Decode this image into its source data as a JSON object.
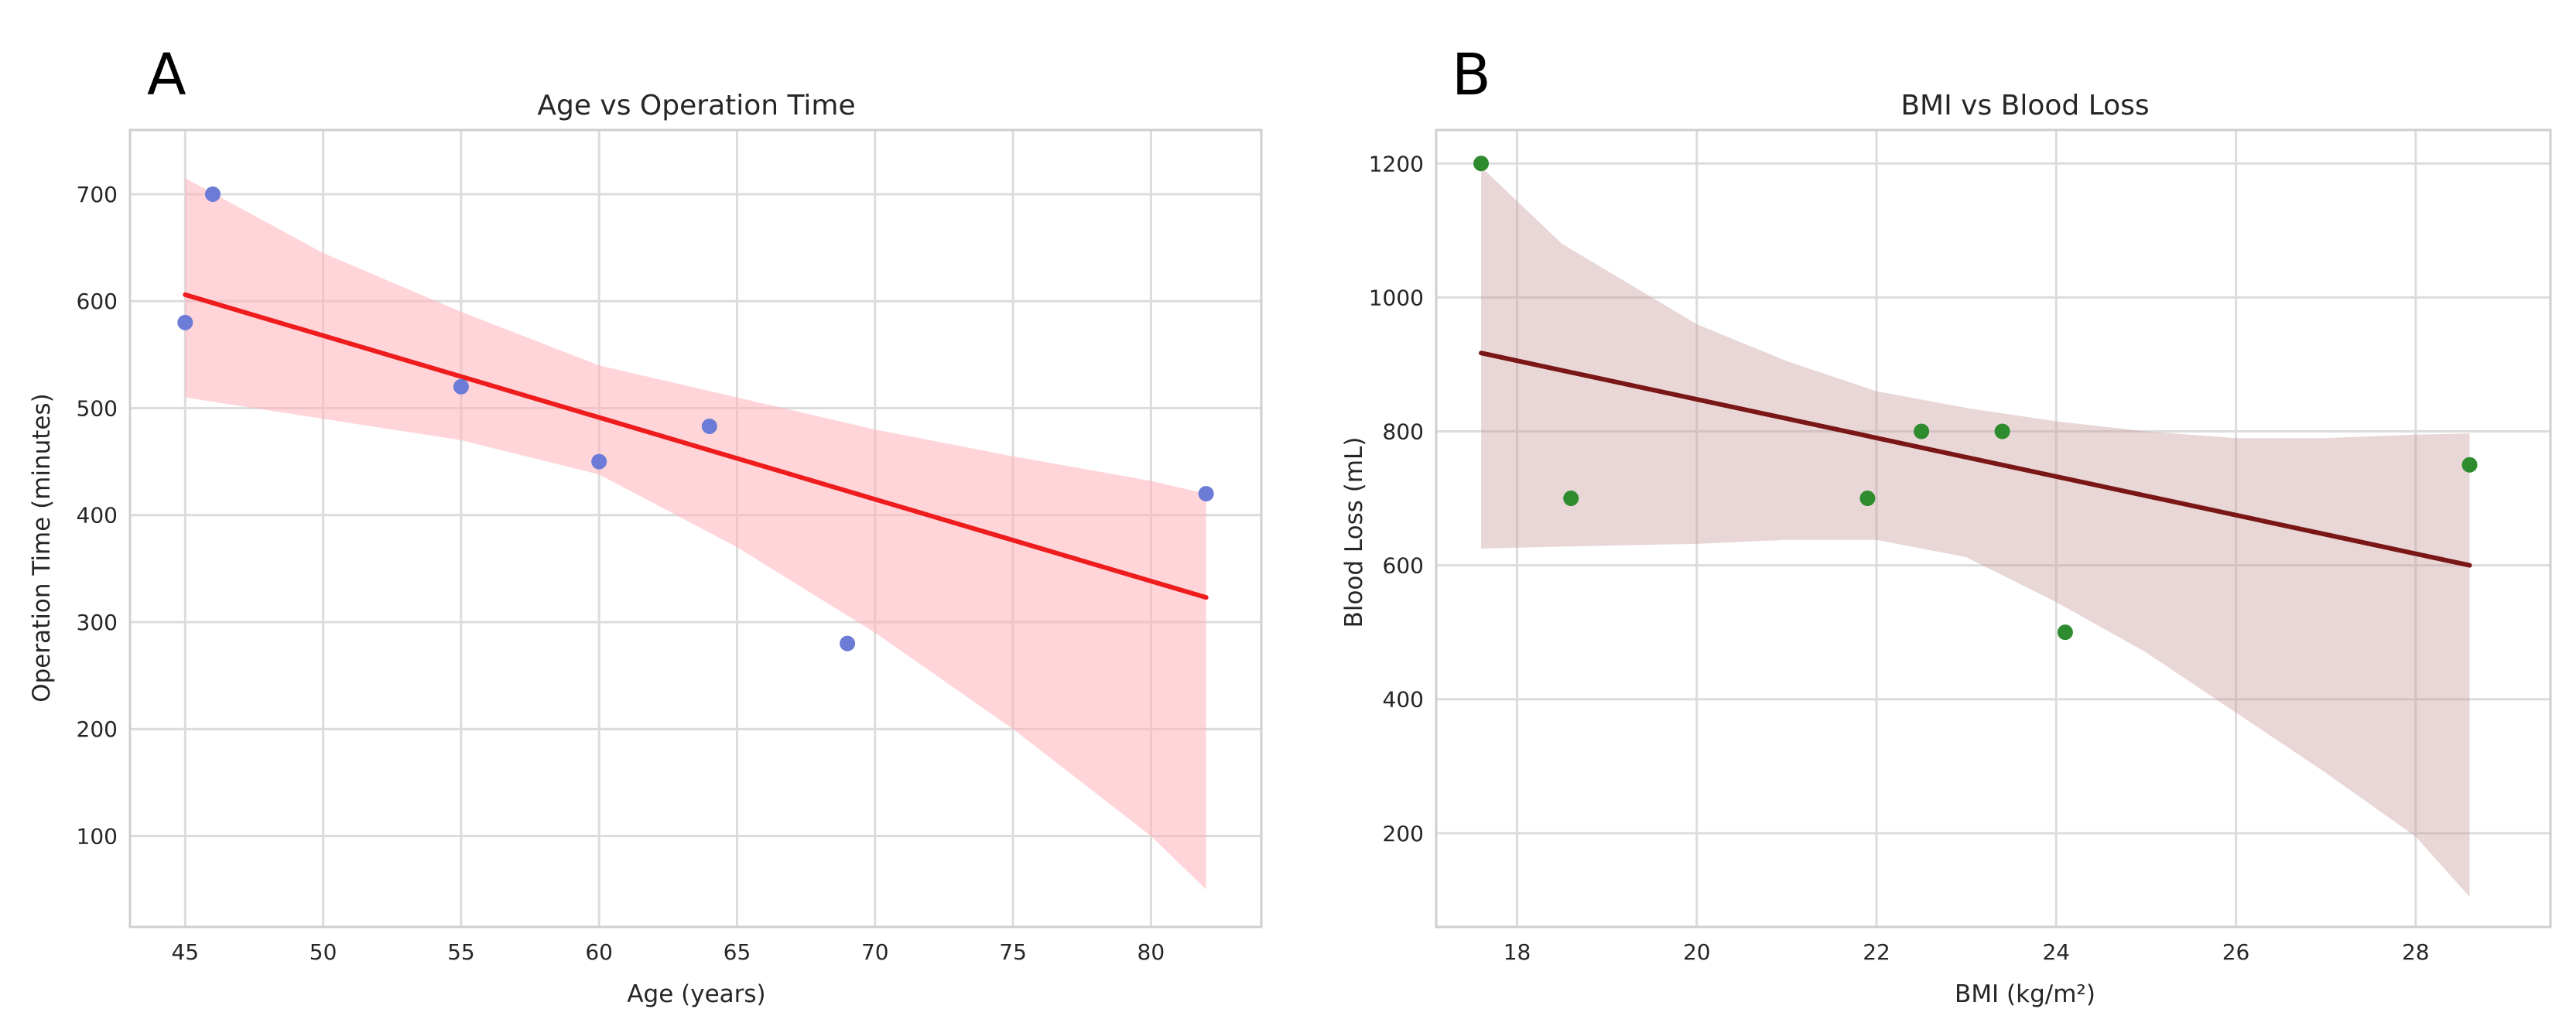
{
  "chart_data": [
    {
      "panel_label": "A",
      "type": "scatter",
      "title": "Age vs Operation Time",
      "xlabel": "Age (years)",
      "ylabel": "Operation Time (minutes)",
      "xlim": [
        43,
        84
      ],
      "ylim": [
        15,
        760
      ],
      "xticks": [
        45,
        50,
        55,
        60,
        65,
        70,
        75,
        80
      ],
      "yticks": [
        100,
        200,
        300,
        400,
        500,
        600,
        700
      ],
      "grid": true,
      "colors": {
        "point": "#6b7bd6",
        "line": "#ee1c1c",
        "band": "#ffb3bb",
        "band_opacity": 0.55
      },
      "points": {
        "x": [
          45,
          46,
          55,
          60,
          64,
          69,
          82
        ],
        "y": [
          580,
          700,
          520,
          450,
          483,
          280,
          420
        ]
      },
      "regression": {
        "x": [
          45,
          82
        ],
        "y": [
          606,
          323
        ]
      },
      "confidence_band": {
        "x": [
          45,
          50,
          55,
          60,
          65,
          70,
          75,
          80,
          82
        ],
        "upper": [
          715,
          645,
          590,
          540,
          510,
          480,
          455,
          432,
          420
        ],
        "lower": [
          510,
          490,
          470,
          438,
          370,
          290,
          200,
          100,
          50
        ]
      }
    },
    {
      "panel_label": "B",
      "type": "scatter",
      "title": "BMI vs Blood Loss",
      "xlabel": "BMI (kg/m²)",
      "ylabel": "Blood Loss (mL)",
      "xlim": [
        17.1,
        29.5
      ],
      "ylim": [
        60,
        1250
      ],
      "xticks": [
        18,
        20,
        22,
        24,
        26,
        28
      ],
      "yticks": [
        200,
        400,
        600,
        800,
        1000,
        1200
      ],
      "grid": true,
      "colors": {
        "point": "#2e8b2e",
        "line": "#7a1616",
        "band": "#c99a9a",
        "band_opacity": 0.4
      },
      "points": {
        "x": [
          17.6,
          18.6,
          21.9,
          22.5,
          23.4,
          24.1,
          28.6
        ],
        "y": [
          1200,
          700,
          700,
          800,
          800,
          500,
          750
        ]
      },
      "regression": {
        "x": [
          17.6,
          28.6
        ],
        "y": [
          917,
          600
        ]
      },
      "confidence_band": {
        "x": [
          17.6,
          18.5,
          20,
          21,
          22,
          23,
          24,
          25,
          26,
          27,
          28,
          28.6
        ],
        "upper": [
          1195,
          1080,
          960,
          905,
          860,
          835,
          815,
          800,
          790,
          790,
          795,
          797
        ],
        "lower": [
          625,
          628,
          632,
          638,
          638,
          612,
          545,
          470,
          380,
          290,
          195,
          105
        ]
      }
    }
  ]
}
